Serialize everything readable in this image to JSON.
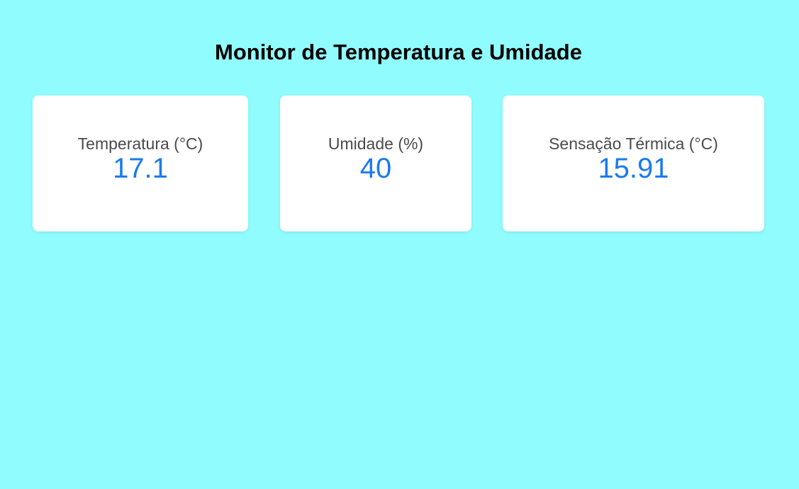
{
  "header": {
    "title": "Monitor de Temperatura e Umidade"
  },
  "cards": [
    {
      "label": "Temperatura (°C)",
      "value": "17.1"
    },
    {
      "label": "Umidade (%)",
      "value": "40"
    },
    {
      "label": "Sensação Térmica (°C)",
      "value": "15.91"
    }
  ],
  "colors": {
    "background": "#91fcfd",
    "card_background": "#ffffff",
    "label_text": "#4a4a4a",
    "value_text": "#1a7af0",
    "title_text": "#000000"
  }
}
